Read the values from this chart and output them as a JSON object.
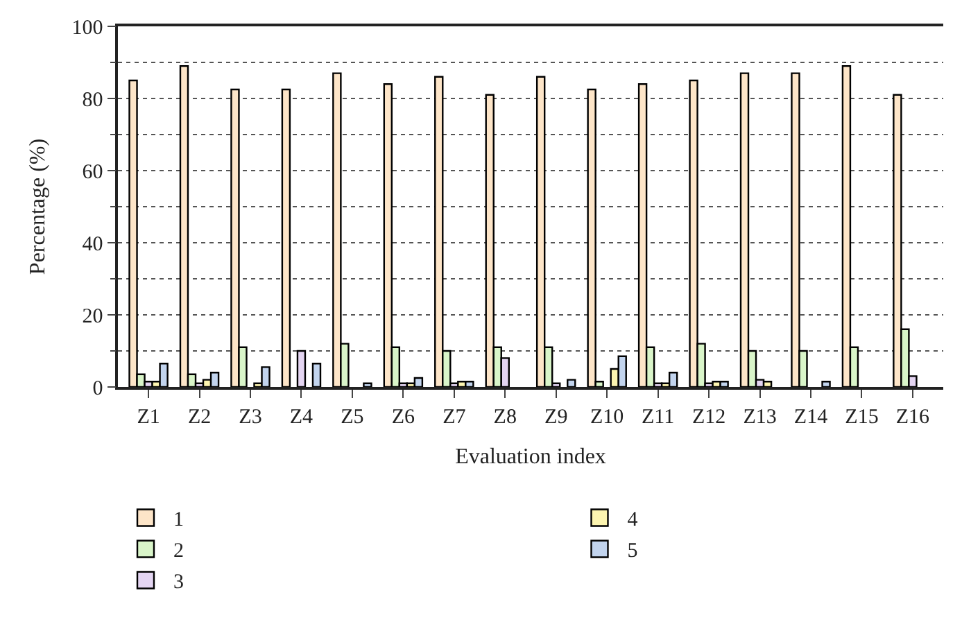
{
  "chart_data": {
    "type": "bar",
    "xlabel": "Evaluation index",
    "ylabel": "Percentage (%)",
    "categories": [
      "Z1",
      "Z2",
      "Z3",
      "Z4",
      "Z5",
      "Z6",
      "Z7",
      "Z8",
      "Z9",
      "Z10",
      "Z11",
      "Z12",
      "Z13",
      "Z14",
      "Z15",
      "Z16"
    ],
    "series": [
      {
        "name": "1",
        "color": "#fde5c8",
        "values": [
          85,
          89,
          82.5,
          82.5,
          87,
          84,
          86,
          81,
          86,
          82.5,
          84,
          85,
          87,
          87,
          89,
          81
        ]
      },
      {
        "name": "2",
        "color": "#d9f5c9",
        "values": [
          3.5,
          3.5,
          11,
          0,
          12,
          11,
          10,
          11,
          11,
          1.5,
          11,
          12,
          10,
          10,
          11,
          16
        ]
      },
      {
        "name": "3",
        "color": "#e4d5f2",
        "values": [
          1.5,
          1,
          0,
          10,
          0,
          1,
          1,
          8,
          1,
          null,
          1,
          1,
          2,
          0,
          null,
          3
        ]
      },
      {
        "name": "4",
        "color": "#fdf5b0",
        "values": [
          1.5,
          2,
          1,
          null,
          0,
          1,
          1.5,
          0,
          null,
          5,
          1,
          1.5,
          1.5,
          0,
          null,
          0
        ]
      },
      {
        "name": "5",
        "color": "#c2d4ee",
        "values": [
          6.5,
          4,
          5.5,
          6.5,
          1,
          2.5,
          1.5,
          0,
          2,
          8.5,
          4,
          1.5,
          0,
          1.5,
          0,
          0
        ]
      }
    ],
    "ylim": [
      0,
      100
    ],
    "yticks": [
      0,
      20,
      40,
      60,
      80,
      100
    ],
    "grid": "y",
    "legend": "bottom"
  }
}
